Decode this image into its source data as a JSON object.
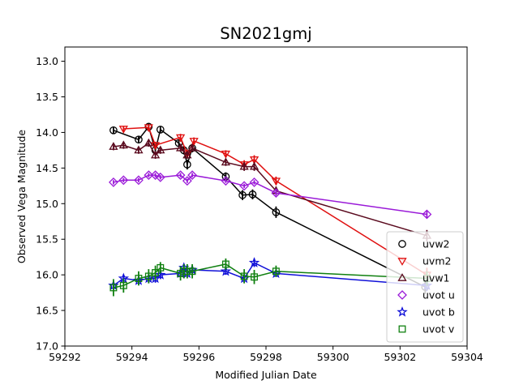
{
  "chart_data": {
    "type": "scatter",
    "title": "SN2021gmj",
    "xlabel": "Modified Julian Date",
    "ylabel": "Observed Vega Magnitude",
    "xlim": [
      59292,
      59304
    ],
    "ylim": [
      17.0,
      12.8
    ],
    "y_inverted": true,
    "grid": false,
    "legend_position": "lower right",
    "x_ticks": [
      "59292",
      "59294",
      "59296",
      "59298",
      "59300",
      "59302",
      "59304"
    ],
    "x_tick_values": [
      59292,
      59294,
      59296,
      59298,
      59300,
      59302,
      59304
    ],
    "y_ticks": [
      "13.0",
      "13.5",
      "14.0",
      "14.5",
      "15.0",
      "15.5",
      "16.0",
      "16.5",
      "17.0"
    ],
    "y_tick_values": [
      13.0,
      13.5,
      14.0,
      14.5,
      15.0,
      15.5,
      16.0,
      16.5,
      17.0
    ],
    "series": [
      {
        "name": "uvw2",
        "marker": "circle",
        "color": "#000000",
        "points": [
          {
            "x": 59293.45,
            "y": 13.97,
            "err": 0.05
          },
          {
            "x": 59294.2,
            "y": 14.1,
            "err": 0.05
          },
          {
            "x": 59294.5,
            "y": 13.92,
            "err": 0.05
          },
          {
            "x": 59294.7,
            "y": 14.25,
            "err": 0.06
          },
          {
            "x": 59294.85,
            "y": 13.96,
            "err": 0.05
          },
          {
            "x": 59295.4,
            "y": 14.15,
            "err": 0.05
          },
          {
            "x": 59295.55,
            "y": 14.25,
            "err": 0.06
          },
          {
            "x": 59295.65,
            "y": 14.45,
            "err": 0.07
          },
          {
            "x": 59295.8,
            "y": 14.22,
            "err": 0.06
          },
          {
            "x": 59296.8,
            "y": 14.62,
            "err": 0.06
          },
          {
            "x": 59297.3,
            "y": 14.88,
            "err": 0.07
          },
          {
            "x": 59297.6,
            "y": 14.87,
            "err": 0.07
          },
          {
            "x": 59298.3,
            "y": 15.12,
            "err": 0.08
          },
          {
            "x": 59302.75,
            "y": 16.17,
            "err": 0.1
          }
        ]
      },
      {
        "name": "uvm2",
        "marker": "triangle_down",
        "color": "#e01010",
        "points": [
          {
            "x": 59293.75,
            "y": 13.95,
            "err": 0.04
          },
          {
            "x": 59294.5,
            "y": 13.93,
            "err": 0.04
          },
          {
            "x": 59294.7,
            "y": 14.18,
            "err": 0.05
          },
          {
            "x": 59295.45,
            "y": 14.07,
            "err": 0.05
          },
          {
            "x": 59295.65,
            "y": 14.3,
            "err": 0.06
          },
          {
            "x": 59295.85,
            "y": 14.12,
            "err": 0.05
          },
          {
            "x": 59296.8,
            "y": 14.3,
            "err": 0.05
          },
          {
            "x": 59297.35,
            "y": 14.45,
            "err": 0.06
          },
          {
            "x": 59297.65,
            "y": 14.38,
            "err": 0.06
          },
          {
            "x": 59298.3,
            "y": 14.68,
            "err": 0.06
          },
          {
            "x": 59302.8,
            "y": 16.0,
            "err": 0.1
          }
        ]
      },
      {
        "name": "uvw1",
        "marker": "triangle_up",
        "color": "#5a0a1e",
        "points": [
          {
            "x": 59293.45,
            "y": 14.2,
            "err": 0.05
          },
          {
            "x": 59293.75,
            "y": 14.18,
            "err": 0.05
          },
          {
            "x": 59294.2,
            "y": 14.25,
            "err": 0.05
          },
          {
            "x": 59294.5,
            "y": 14.15,
            "err": 0.05
          },
          {
            "x": 59294.7,
            "y": 14.32,
            "err": 0.05
          },
          {
            "x": 59294.85,
            "y": 14.25,
            "err": 0.05
          },
          {
            "x": 59295.45,
            "y": 14.22,
            "err": 0.05
          },
          {
            "x": 59295.65,
            "y": 14.32,
            "err": 0.05
          },
          {
            "x": 59295.8,
            "y": 14.22,
            "err": 0.05
          },
          {
            "x": 59296.8,
            "y": 14.42,
            "err": 0.05
          },
          {
            "x": 59297.35,
            "y": 14.48,
            "err": 0.06
          },
          {
            "x": 59297.65,
            "y": 14.48,
            "err": 0.06
          },
          {
            "x": 59298.3,
            "y": 14.82,
            "err": 0.06
          },
          {
            "x": 59302.8,
            "y": 15.45,
            "err": 0.08
          }
        ]
      },
      {
        "name": "uvot u",
        "marker": "diamond",
        "color": "#9a1ad8",
        "points": [
          {
            "x": 59293.45,
            "y": 14.7,
            "err": 0.03
          },
          {
            "x": 59293.75,
            "y": 14.67,
            "err": 0.03
          },
          {
            "x": 59294.2,
            "y": 14.67,
            "err": 0.03
          },
          {
            "x": 59294.5,
            "y": 14.6,
            "err": 0.03
          },
          {
            "x": 59294.7,
            "y": 14.6,
            "err": 0.03
          },
          {
            "x": 59294.85,
            "y": 14.63,
            "err": 0.03
          },
          {
            "x": 59295.45,
            "y": 14.6,
            "err": 0.03
          },
          {
            "x": 59295.65,
            "y": 14.68,
            "err": 0.03
          },
          {
            "x": 59295.8,
            "y": 14.6,
            "err": 0.03
          },
          {
            "x": 59296.8,
            "y": 14.68,
            "err": 0.03
          },
          {
            "x": 59297.35,
            "y": 14.75,
            "err": 0.03
          },
          {
            "x": 59297.65,
            "y": 14.7,
            "err": 0.03
          },
          {
            "x": 59298.3,
            "y": 14.85,
            "err": 0.04
          },
          {
            "x": 59302.8,
            "y": 15.15,
            "err": 0.05
          }
        ]
      },
      {
        "name": "uvot b",
        "marker": "star",
        "color": "#1010d8",
        "points": [
          {
            "x": 59293.45,
            "y": 16.15,
            "err": 0.06
          },
          {
            "x": 59293.75,
            "y": 16.05,
            "err": 0.05
          },
          {
            "x": 59294.2,
            "y": 16.08,
            "err": 0.06
          },
          {
            "x": 59294.5,
            "y": 16.05,
            "err": 0.06
          },
          {
            "x": 59294.7,
            "y": 16.05,
            "err": 0.06
          },
          {
            "x": 59294.85,
            "y": 16.0,
            "err": 0.06
          },
          {
            "x": 59295.45,
            "y": 15.98,
            "err": 0.06
          },
          {
            "x": 59295.55,
            "y": 15.9,
            "err": 0.05
          },
          {
            "x": 59295.65,
            "y": 15.98,
            "err": 0.06
          },
          {
            "x": 59295.8,
            "y": 15.93,
            "err": 0.05
          },
          {
            "x": 59296.8,
            "y": 15.95,
            "err": 0.05
          },
          {
            "x": 59297.35,
            "y": 16.05,
            "err": 0.06
          },
          {
            "x": 59297.65,
            "y": 15.83,
            "err": 0.06
          },
          {
            "x": 59298.3,
            "y": 15.98,
            "err": 0.05
          },
          {
            "x": 59302.8,
            "y": 16.15,
            "err": 0.08
          }
        ]
      },
      {
        "name": "uvot v",
        "marker": "square",
        "color": "#108010",
        "points": [
          {
            "x": 59293.45,
            "y": 16.18,
            "err": 0.12
          },
          {
            "x": 59293.75,
            "y": 16.15,
            "err": 0.1
          },
          {
            "x": 59294.2,
            "y": 16.05,
            "err": 0.1
          },
          {
            "x": 59294.5,
            "y": 16.02,
            "err": 0.1
          },
          {
            "x": 59294.7,
            "y": 15.97,
            "err": 0.1
          },
          {
            "x": 59294.85,
            "y": 15.9,
            "err": 0.08
          },
          {
            "x": 59295.45,
            "y": 15.98,
            "err": 0.1
          },
          {
            "x": 59295.55,
            "y": 15.95,
            "err": 0.1
          },
          {
            "x": 59295.65,
            "y": 15.95,
            "err": 0.1
          },
          {
            "x": 59295.8,
            "y": 15.95,
            "err": 0.1
          },
          {
            "x": 59296.8,
            "y": 15.85,
            "err": 0.08
          },
          {
            "x": 59297.35,
            "y": 16.02,
            "err": 0.1
          },
          {
            "x": 59297.65,
            "y": 16.03,
            "err": 0.1
          },
          {
            "x": 59298.3,
            "y": 15.95,
            "err": 0.08
          },
          {
            "x": 59302.8,
            "y": 16.05,
            "err": 0.1
          }
        ]
      }
    ]
  }
}
